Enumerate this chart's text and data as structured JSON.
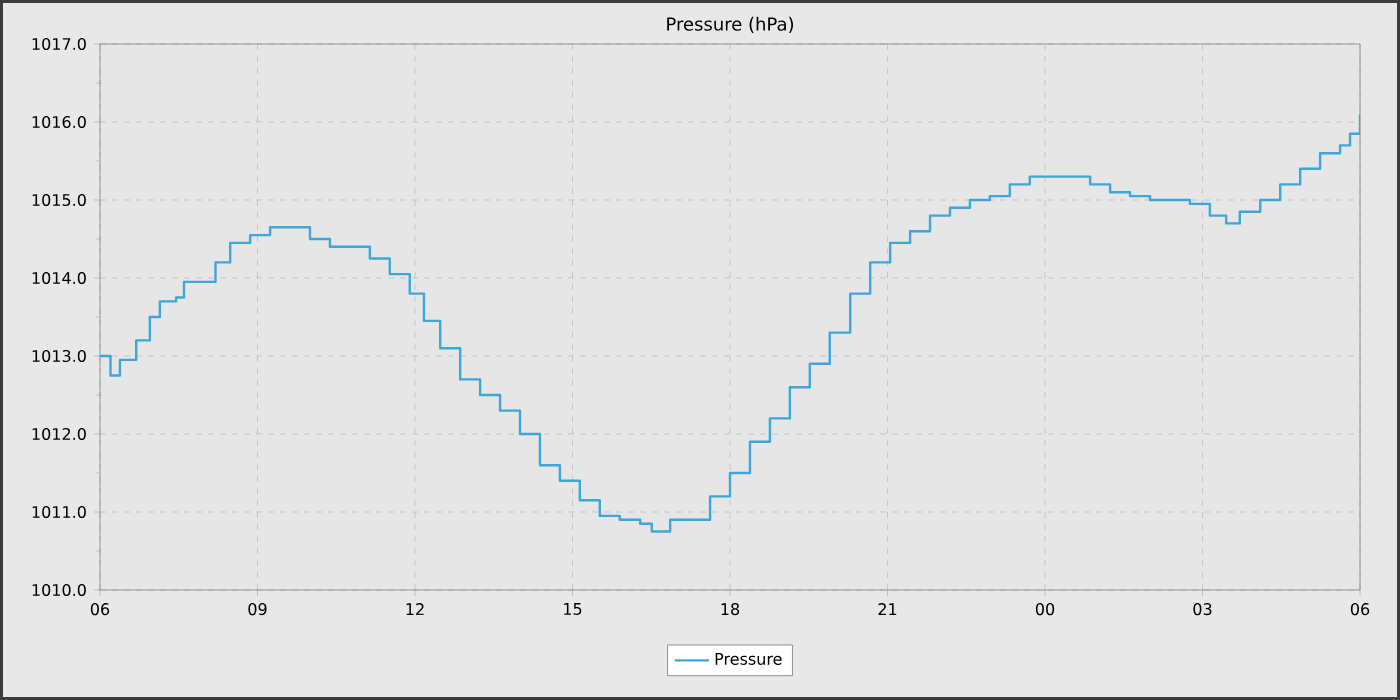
{
  "chart_data": {
    "type": "step",
    "title": "Pressure (hPa)",
    "series": [
      {
        "name": "Pressure",
        "color": "#3ea6d8",
        "x": [
          6.0,
          6.2,
          6.38,
          6.69,
          6.95,
          7.14,
          7.45,
          7.6,
          7.9,
          8.2,
          8.48,
          8.86,
          9.24,
          9.62,
          10.0,
          10.38,
          10.76,
          11.14,
          11.52,
          11.9,
          12.17,
          12.48,
          12.86,
          13.24,
          13.62,
          14.0,
          14.38,
          14.76,
          15.14,
          15.52,
          15.9,
          16.29,
          16.51,
          16.86,
          17.24,
          17.62,
          18.0,
          18.38,
          18.76,
          19.14,
          19.52,
          19.9,
          20.29,
          20.67,
          21.05,
          21.43,
          21.81,
          22.19,
          22.57,
          22.95,
          23.33,
          23.71,
          24.1,
          24.48,
          24.86,
          25.24,
          25.62,
          26.0,
          26.38,
          26.76,
          27.14,
          27.45,
          27.71,
          28.1,
          28.48,
          28.86,
          29.24,
          29.62,
          29.81,
          30.0
        ],
        "values": [
          1013.0,
          1012.75,
          1012.95,
          1013.2,
          1013.5,
          1013.7,
          1013.75,
          1013.95,
          1013.95,
          1014.2,
          1014.45,
          1014.55,
          1014.65,
          1014.65,
          1014.5,
          1014.4,
          1014.4,
          1014.25,
          1014.05,
          1013.8,
          1013.45,
          1013.1,
          1012.7,
          1012.5,
          1012.3,
          1012.0,
          1011.6,
          1011.4,
          1011.15,
          1010.95,
          1010.9,
          1010.85,
          1010.75,
          1010.9,
          1010.9,
          1011.2,
          1011.5,
          1011.9,
          1012.2,
          1012.6,
          1012.9,
          1013.3,
          1013.8,
          1014.2,
          1014.45,
          1014.6,
          1014.8,
          1014.9,
          1015.0,
          1015.05,
          1015.2,
          1015.3,
          1015.3,
          1015.3,
          1015.2,
          1015.1,
          1015.05,
          1015.0,
          1015.0,
          1014.95,
          1014.8,
          1014.7,
          1014.85,
          1015.0,
          1015.2,
          1015.4,
          1015.6,
          1015.7,
          1015.85,
          1016.1
        ]
      }
    ],
    "xlim": [
      6,
      30
    ],
    "ylim": [
      1010,
      1017
    ],
    "xticks": [
      {
        "value": 6,
        "label": "06"
      },
      {
        "value": 9,
        "label": "09"
      },
      {
        "value": 12,
        "label": "12"
      },
      {
        "value": 15,
        "label": "15"
      },
      {
        "value": 18,
        "label": "18"
      },
      {
        "value": 21,
        "label": "21"
      },
      {
        "value": 24,
        "label": "00"
      },
      {
        "value": 27,
        "label": "03"
      },
      {
        "value": 30,
        "label": "06"
      }
    ],
    "yticks": [
      {
        "value": 1010,
        "label": "1010.0"
      },
      {
        "value": 1011,
        "label": "1011.0"
      },
      {
        "value": 1012,
        "label": "1012.0"
      },
      {
        "value": 1013,
        "label": "1013.0"
      },
      {
        "value": 1014,
        "label": "1014.0"
      },
      {
        "value": 1015,
        "label": "1015.0"
      },
      {
        "value": 1016,
        "label": "1016.0"
      },
      {
        "value": 1017,
        "label": "1017.0"
      }
    ],
    "grid": true,
    "legend": "bottom",
    "marker": "none",
    "line_style": "solid"
  }
}
